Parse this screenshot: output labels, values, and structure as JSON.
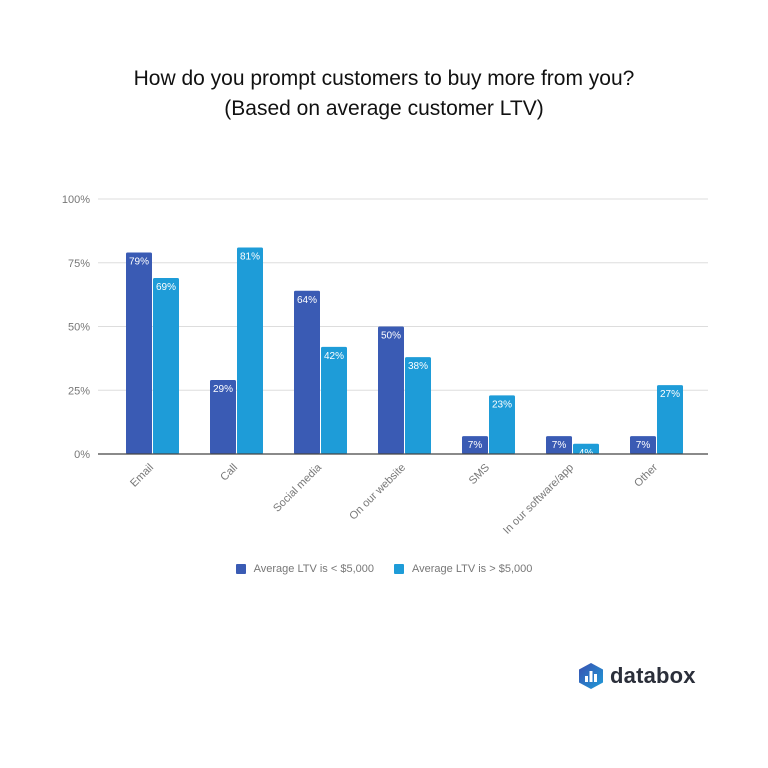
{
  "chart_data": {
    "type": "bar",
    "title": [
      "How do you prompt customers to buy more from you?",
      "(Based on average customer LTV)"
    ],
    "categories": [
      "Email",
      "Call",
      "Social media",
      "On our website",
      "SMS",
      "In our software/app",
      "Other"
    ],
    "series": [
      {
        "name": "Average LTV is < $5,000",
        "color": "#3a5bb4",
        "values": [
          79,
          29,
          64,
          50,
          7,
          7,
          7
        ]
      },
      {
        "name": "Average LTV is > $5,000",
        "color": "#1e9cd8",
        "values": [
          69,
          81,
          42,
          38,
          23,
          4,
          27
        ]
      }
    ],
    "ylim": [
      0,
      100
    ],
    "yticks": [
      "0%",
      "25%",
      "50%",
      "75%",
      "100%"
    ],
    "ytick_values": [
      0,
      25,
      50,
      75,
      100
    ],
    "value_suffix": "%",
    "grid": true,
    "legend": "bottom",
    "xlabel": "",
    "ylabel": ""
  },
  "brand": {
    "logo_text": "databox",
    "logo_color": "#3a5bb4"
  }
}
